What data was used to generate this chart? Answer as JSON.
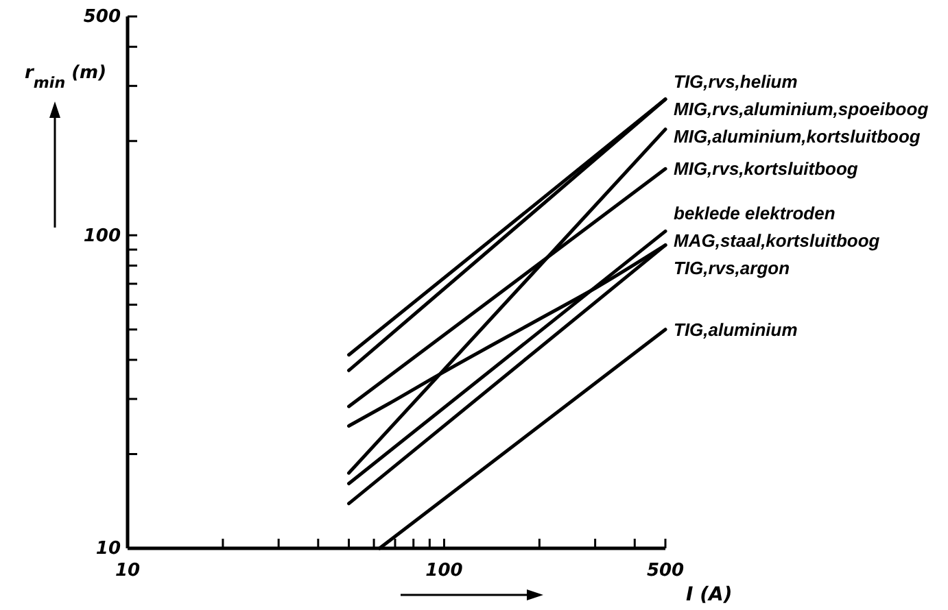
{
  "chart_data": {
    "type": "line",
    "xlabel": "I (A)",
    "ylabel": "r$_{min}$ (m)",
    "log": "xy",
    "grid": false,
    "legend": false,
    "marker": "none",
    "line_style": "solid",
    "xlim": [
      10,
      500
    ],
    "ylim": [
      10,
      500
    ],
    "xticks": [
      10,
      {
        "value": 20,
        "label": null
      },
      {
        "value": 30,
        "label": null
      },
      {
        "value": 40,
        "label": null
      },
      {
        "value": 50,
        "label": null
      },
      {
        "value": 60,
        "label": null
      },
      {
        "value": 70,
        "label": null
      },
      {
        "value": 80,
        "label": null
      },
      {
        "value": 90,
        "label": null
      },
      100,
      {
        "value": 200,
        "label": null
      },
      {
        "value": 300,
        "label": null
      },
      {
        "value": 400,
        "label": null
      },
      500
    ],
    "yticks": [
      10,
      {
        "value": 20,
        "label": null
      },
      {
        "value": 30,
        "label": null
      },
      {
        "value": 40,
        "label": null
      },
      {
        "value": 50,
        "label": null
      },
      {
        "value": 60,
        "label": null
      },
      {
        "value": 70,
        "label": null
      },
      {
        "value": 80,
        "label": null
      },
      {
        "value": 90,
        "label": null
      },
      100,
      {
        "value": 200,
        "label": null
      },
      {
        "value": 300,
        "label": null
      },
      {
        "value": 400,
        "label": null
      },
      500
    ],
    "series": [
      {
        "name": "TIG,rvs,helium",
        "color": "#000000",
        "x": [
          50,
          500
        ],
        "values": [
          41.5,
          272
        ]
      },
      {
        "name": "MIG,rvs,aluminium,spoeiboog",
        "color": "#000000",
        "x": [
          50,
          500
        ],
        "values": [
          37,
          272
        ]
      },
      {
        "name": "MIG,aluminium,kortsluitboog",
        "color": "#000000",
        "x": [
          50,
          500
        ],
        "values": [
          17.4,
          218
        ]
      },
      {
        "name": "MIG,rvs,kortsluitboog",
        "color": "#000000",
        "x": [
          50,
          500
        ],
        "values": [
          28.4,
          163
        ]
      },
      {
        "name": "beklede elektroden",
        "color": "#000000",
        "x": [
          50,
          500
        ],
        "values": [
          16.1,
          103
        ]
      },
      {
        "name": "MAG,staal,kortsluitboog",
        "color": "#000000",
        "x": [
          50,
          67,
          97,
          200,
          302,
          500
        ],
        "values": [
          24.6,
          29,
          36,
          54,
          68,
          93
        ]
      },
      {
        "name": "TIG,rvs,argon",
        "color": "#000000",
        "x": [
          50,
          500
        ],
        "values": [
          13.9,
          93
        ]
      },
      {
        "name": "TIG,aluminium",
        "color": "#000000",
        "x": [
          62.5,
          500
        ],
        "values": [
          10,
          50
        ]
      }
    ]
  }
}
